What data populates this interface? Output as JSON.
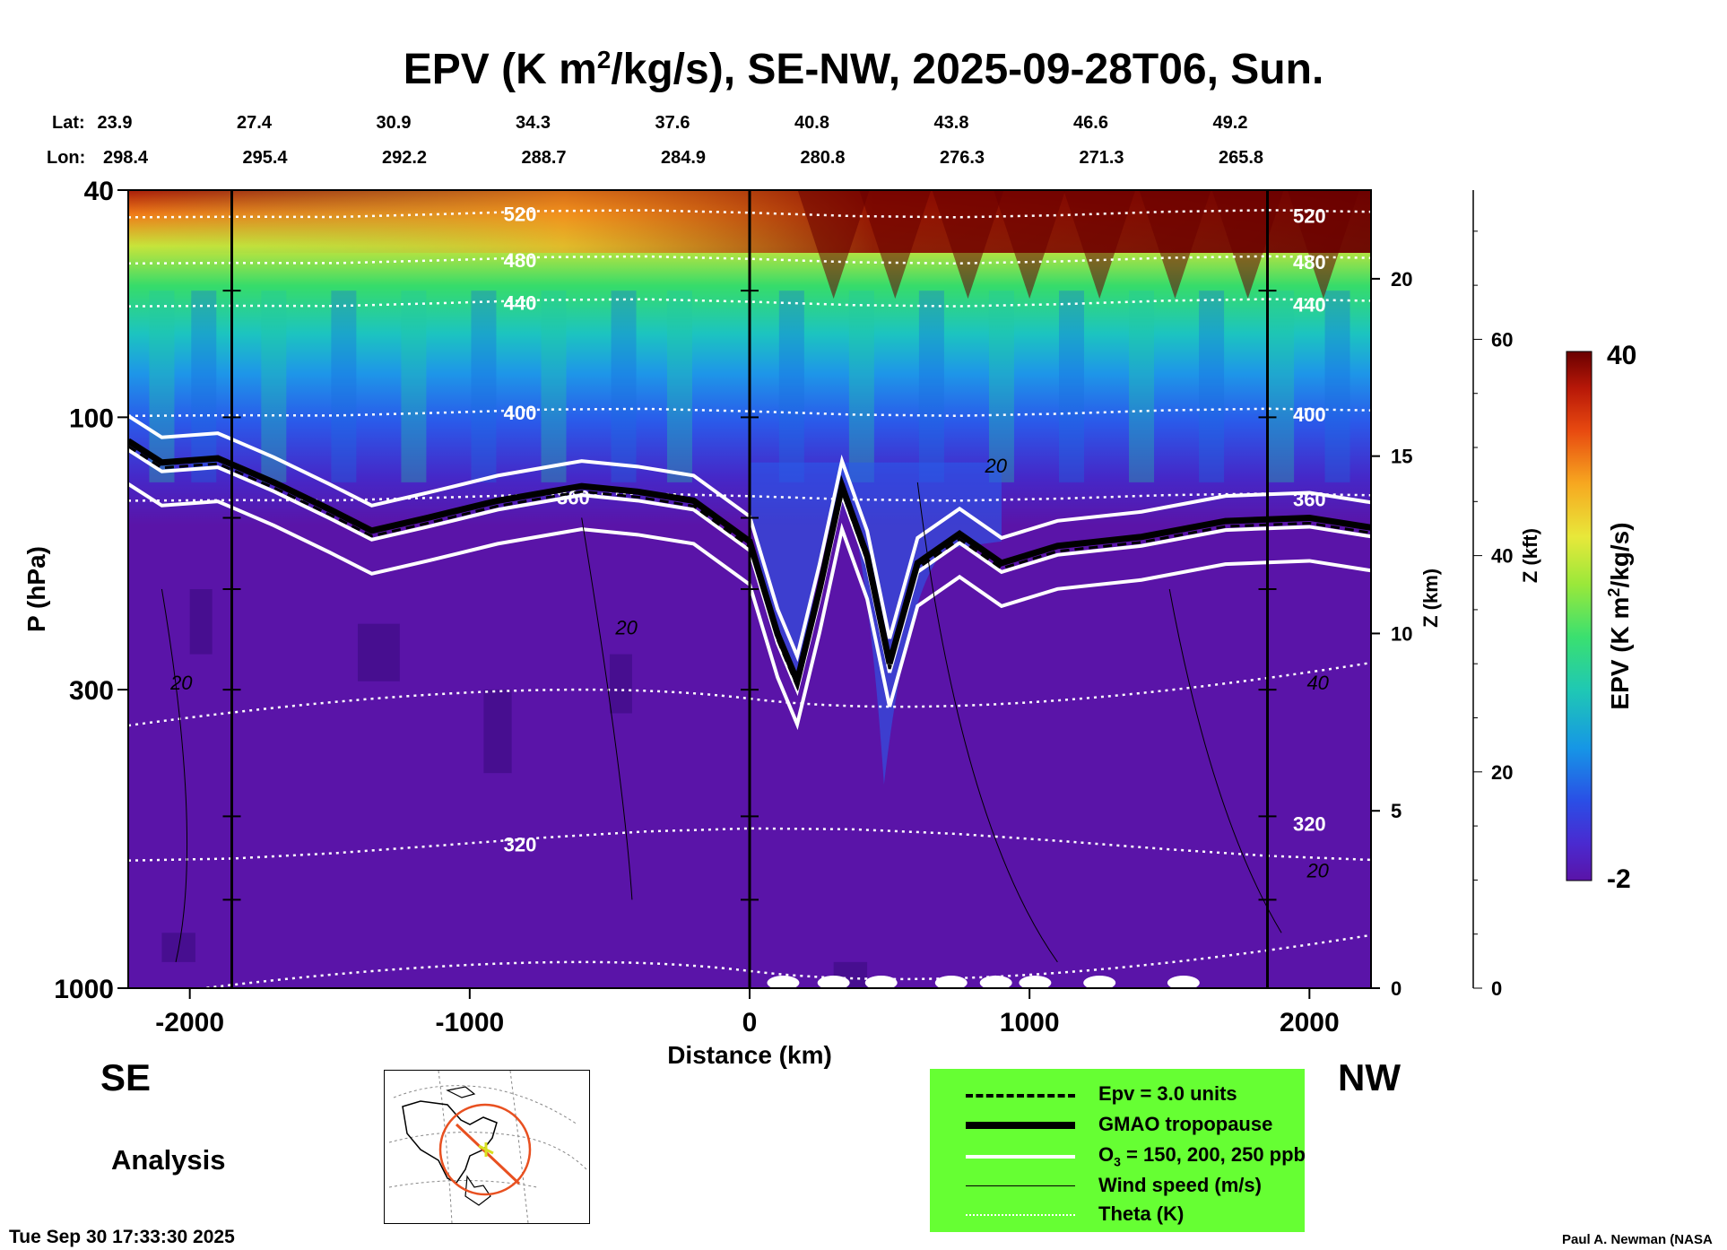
{
  "title": {
    "prefix": "EPV (K m",
    "sup": "2",
    "suffix": "/kg/s), SE-NW, 2025-09-28T06, Sun."
  },
  "header": {
    "lat_label": "Lat:",
    "lon_label": "Lon:",
    "lats": [
      "23.9",
      "27.4",
      "30.9",
      "34.3",
      "37.6",
      "40.8",
      "43.8",
      "46.6",
      "49.2"
    ],
    "lons": [
      "298.4",
      "295.4",
      "292.2",
      "288.7",
      "284.9",
      "280.8",
      "276.3",
      "271.3",
      "265.8"
    ]
  },
  "chart_data": {
    "type": "heatmap",
    "title": "EPV (K m2/kg/s), SE-NW, 2025-09-28T06, Sun.",
    "xlabel": "Distance (km)",
    "ylabel": "P (hPa)",
    "xlim": [
      -2220,
      2220
    ],
    "ylim_hpa": [
      1000,
      40
    ],
    "x_ticks": [
      "-2000",
      "-1000",
      "0",
      "1000",
      "2000"
    ],
    "x_tick_values": [
      -2000,
      -1000,
      0,
      1000,
      2000
    ],
    "y_ticks": [
      "40",
      "100",
      "300",
      "1000"
    ],
    "y_tick_values": [
      40,
      100,
      300,
      1000
    ],
    "z_km_label": "Z (km)",
    "z_km_ticks": [
      "0",
      "5",
      "10",
      "15",
      "20"
    ],
    "z_km_values": [
      0,
      5,
      10,
      15,
      20
    ],
    "z_kft_label": "Z (kft)",
    "z_kft_ticks": [
      "0",
      "20",
      "40",
      "60"
    ],
    "z_kft_values": [
      0,
      20,
      40,
      60
    ],
    "colorbar": {
      "label": "EPV (K m2/kg/s)",
      "label_prefix": "EPV (K m",
      "label_sup": "2",
      "label_suffix": "/kg/s)",
      "min_label": "-2",
      "max_label": "40",
      "min": -2,
      "max": 40
    },
    "theta_contours": [
      {
        "label": "520",
        "level_hpa": 44
      },
      {
        "label": "480",
        "level_hpa": 53
      },
      {
        "label": "440",
        "level_hpa": 63
      },
      {
        "label": "400",
        "level_hpa": 98
      },
      {
        "label": "360",
        "level_hpa": 138
      },
      {
        "label": "320",
        "level_hpa": 560
      }
    ],
    "wind_labels": [
      {
        "label": "20",
        "x": -2030,
        "p": 300
      },
      {
        "label": "20",
        "x": -440,
        "p": 240
      },
      {
        "label": "20",
        "x": 880,
        "p": 125
      },
      {
        "label": "40",
        "x": 2030,
        "p": 300
      },
      {
        "label": "20",
        "x": 2030,
        "p": 640
      }
    ],
    "tropopause_hpa": [
      {
        "x": -2220,
        "p": 110
      },
      {
        "x": -2100,
        "p": 120
      },
      {
        "x": -1900,
        "p": 118
      },
      {
        "x": -1700,
        "p": 130
      },
      {
        "x": -1500,
        "p": 145
      },
      {
        "x": -1350,
        "p": 158
      },
      {
        "x": -1150,
        "p": 150
      },
      {
        "x": -900,
        "p": 140
      },
      {
        "x": -600,
        "p": 132
      },
      {
        "x": -400,
        "p": 135
      },
      {
        "x": -200,
        "p": 140
      },
      {
        "x": 0,
        "p": 165
      },
      {
        "x": 100,
        "p": 240
      },
      {
        "x": 170,
        "p": 290
      },
      {
        "x": 250,
        "p": 200
      },
      {
        "x": 330,
        "p": 132
      },
      {
        "x": 420,
        "p": 175
      },
      {
        "x": 500,
        "p": 270
      },
      {
        "x": 600,
        "p": 180
      },
      {
        "x": 750,
        "p": 160
      },
      {
        "x": 900,
        "p": 180
      },
      {
        "x": 1100,
        "p": 168
      },
      {
        "x": 1400,
        "p": 162
      },
      {
        "x": 1700,
        "p": 152
      },
      {
        "x": 2000,
        "p": 150
      },
      {
        "x": 2220,
        "p": 156
      }
    ],
    "distance_markers": [
      -1850,
      0,
      1850
    ],
    "side_labels": {
      "left": "SE",
      "right": "NW"
    }
  },
  "analysis_label": "Analysis",
  "legend": {
    "items": [
      {
        "text": "Epv = 3.0 units",
        "style": "dashed"
      },
      {
        "text": "GMAO tropopause",
        "style": "thick"
      },
      {
        "text_prefix": "O",
        "text_sub": "3",
        "text_suffix": " = 150, 200, 250 ppb",
        "style": "white"
      },
      {
        "text": "Wind speed (m/s)",
        "style": "thin"
      },
      {
        "text": "Theta (K)",
        "style": "dotted"
      }
    ]
  },
  "footer": {
    "timestamp": "Tue Sep 30 17:33:30 2025",
    "credit": "Paul A. Newman (NASA"
  },
  "colors": {
    "background": "#ffffff",
    "legend_bg": "#66ff33",
    "purple_base": "#5a14a8",
    "dark_red": "#6a0000",
    "map_circle": "#e85020"
  }
}
